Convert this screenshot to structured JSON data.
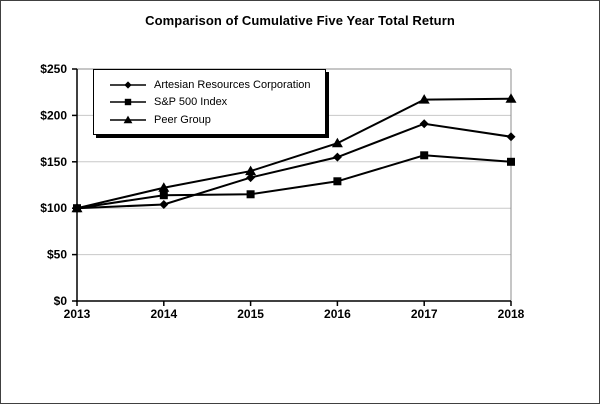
{
  "figure": {
    "title": "Comparison of Cumulative Five Year Total Return"
  },
  "chart_data": {
    "type": "line",
    "title": "Comparison of Cumulative Five Year Total Return",
    "categories": [
      "2013",
      "2014",
      "2015",
      "2016",
      "2017",
      "2018"
    ],
    "series": [
      {
        "name": "Artesian Resources Corporation",
        "marker": "diamond",
        "values": [
          100,
          104,
          133,
          155,
          191,
          177
        ]
      },
      {
        "name": "S&P 500 Index",
        "marker": "square",
        "values": [
          100,
          114,
          115,
          129,
          157,
          150
        ]
      },
      {
        "name": "Peer Group",
        "marker": "triangle",
        "values": [
          100,
          122,
          140,
          170,
          217,
          218
        ]
      }
    ],
    "ylim": [
      0,
      250
    ],
    "yticks": [
      {
        "value": 0,
        "label": "$0"
      },
      {
        "value": 50,
        "label": "$50"
      },
      {
        "value": 100,
        "label": "$100"
      },
      {
        "value": 150,
        "label": "$150"
      },
      {
        "value": 200,
        "label": "$200"
      },
      {
        "value": 250,
        "label": "$250"
      }
    ],
    "grid": true,
    "legend_position": "top-left",
    "colors": {
      "series_line": "#000000",
      "gridline": "#c8c8c8",
      "frame": "#8c8c8c",
      "axis": "#000000",
      "background": "#ffffff"
    }
  }
}
